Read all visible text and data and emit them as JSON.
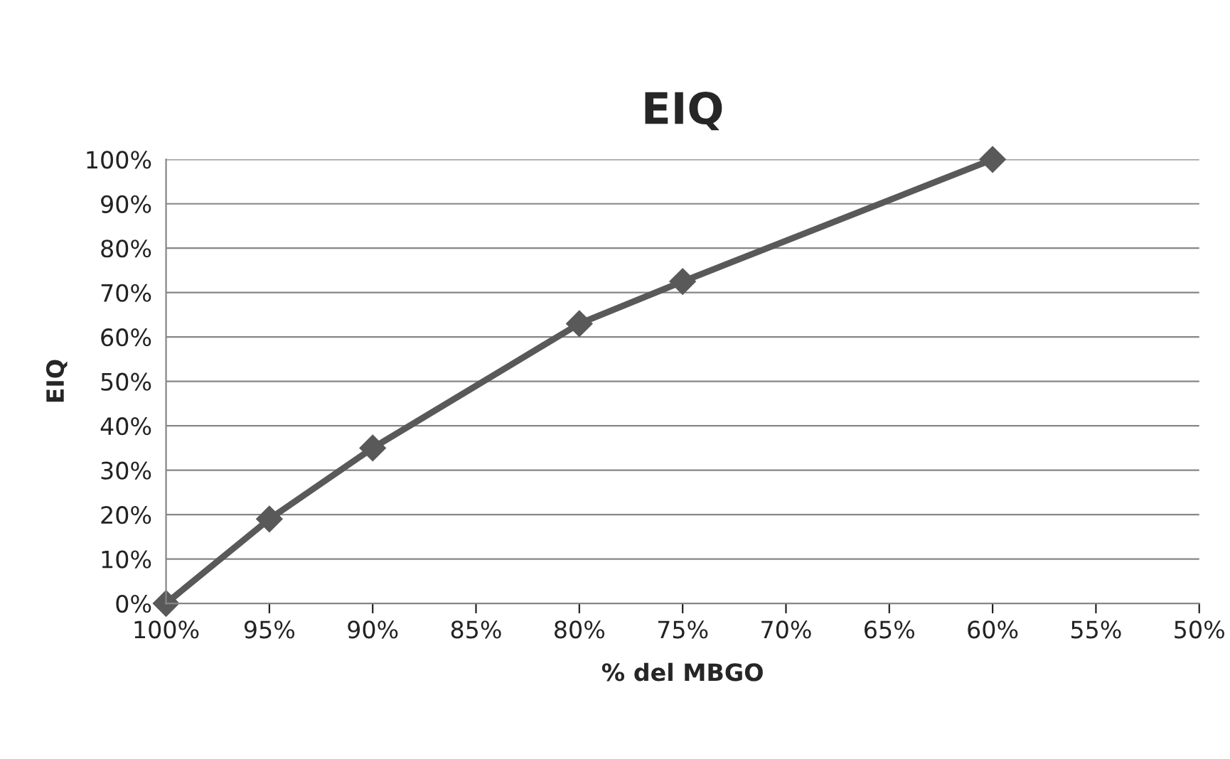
{
  "chart_data": {
    "type": "line",
    "title": "EIQ",
    "xlabel": "% del MBGO",
    "ylabel": "EIQ",
    "x": [
      100,
      95,
      90,
      80,
      75,
      60
    ],
    "series": [
      {
        "color": "#595959",
        "values": [
          0,
          19,
          35,
          63,
          72.5,
          100
        ]
      }
    ],
    "xlim": [
      100,
      50
    ],
    "xticks": [
      {
        "value": 100,
        "label": "100%"
      },
      {
        "value": 95,
        "label": "95%"
      },
      {
        "value": 90,
        "label": "90%"
      },
      {
        "value": 85,
        "label": "85%"
      },
      {
        "value": 80,
        "label": "80%"
      },
      {
        "value": 75,
        "label": "75%"
      },
      {
        "value": 70,
        "label": "70%"
      },
      {
        "value": 65,
        "label": "65%"
      },
      {
        "value": 60,
        "label": "60%"
      },
      {
        "value": 55,
        "label": "55%"
      },
      {
        "value": 50,
        "label": "50%"
      }
    ],
    "ylim": [
      0,
      100
    ],
    "yticks": [
      {
        "value": 0,
        "label": "0%"
      },
      {
        "value": 10,
        "label": "10%"
      },
      {
        "value": 20,
        "label": "20%"
      },
      {
        "value": 30,
        "label": "30%"
      },
      {
        "value": 40,
        "label": "40%"
      },
      {
        "value": 50,
        "label": "50%"
      },
      {
        "value": 60,
        "label": "60%"
      },
      {
        "value": 70,
        "label": "70%"
      },
      {
        "value": 80,
        "label": "80%"
      },
      {
        "value": 90,
        "label": "90%"
      },
      {
        "value": 100,
        "label": "100%"
      }
    ],
    "grid": "y",
    "marker": "diamond",
    "line_style": "solid",
    "legend": false
  }
}
